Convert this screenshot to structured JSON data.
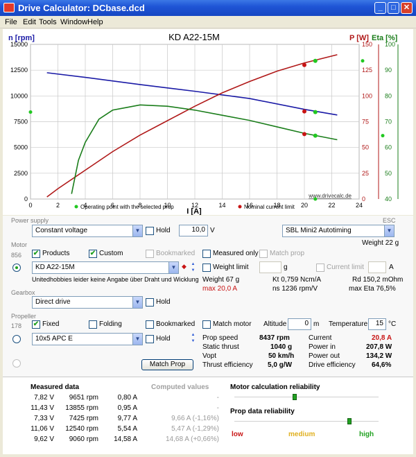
{
  "window": {
    "title": "Drive Calculator: DCbase.dcd"
  },
  "menu": [
    "File",
    "Edit",
    "Tools",
    "Window",
    "Help"
  ],
  "chart": {
    "title": "KD A22-15M",
    "left_axis_label": "n [rpm]",
    "right_axis_label_p": "P [W]",
    "right_axis_label_eta": "Eta [%]",
    "x_axis_label": "I [A]",
    "watermark": "www.drivecalc.de",
    "legend_operating": "Operating point with the selected prop",
    "legend_limit": "Nominal current limit",
    "x_ticks": [
      "0",
      "2",
      "4",
      "6",
      "8",
      "10",
      "12",
      "14",
      "16",
      "18",
      "20",
      "22",
      "24"
    ],
    "n_ticks": [
      "0",
      "2500",
      "5000",
      "7500",
      "10000",
      "12500",
      "15000"
    ],
    "p_ticks": [
      "0",
      "25",
      "50",
      "75",
      "100",
      "125",
      "150"
    ],
    "eta_ticks": [
      "40",
      "50",
      "60",
      "70",
      "80",
      "90",
      "100"
    ],
    "colors": {
      "rpm": "#1a1aa6",
      "power": "#b01818",
      "eta": "#1a7d1a",
      "grid": "#c8c8c8",
      "op_point": "#21c821",
      "limit_point": "#c81414"
    }
  },
  "chart_data": {
    "type": "line",
    "title": "KD A22-15M",
    "xlabel": "I [A]",
    "xlim": [
      0,
      24
    ],
    "series": [
      {
        "name": "n [rpm]",
        "axis": "left",
        "ylim": [
          0,
          15000
        ],
        "x": [
          1.2,
          4,
          8,
          12,
          16,
          20,
          22.4
        ],
        "y": [
          12250,
          11800,
          11100,
          10450,
          9750,
          8700,
          8150
        ]
      },
      {
        "name": "P [W]",
        "axis": "right_p",
        "ylim": [
          0,
          150
        ],
        "x": [
          1.2,
          2,
          4,
          6,
          8,
          10,
          12,
          14,
          16,
          18,
          20,
          22.4
        ],
        "y": [
          2,
          10,
          28,
          46,
          62,
          76,
          90,
          103,
          114,
          124,
          132,
          140
        ]
      },
      {
        "name": "Eta [%]",
        "axis": "right_eta",
        "ylim": [
          40,
          100
        ],
        "x": [
          3,
          3.5,
          4,
          5,
          6,
          7,
          8,
          10,
          12,
          14,
          16,
          18,
          20,
          22.4
        ],
        "y": [
          42,
          55,
          62,
          71,
          74.5,
          75.5,
          76.5,
          76,
          74.5,
          72.5,
          70.5,
          68,
          65.5,
          63
        ]
      },
      {
        "name": "P [W] (nominal current limit)",
        "axis": "right_p",
        "ylim": [
          0,
          150
        ],
        "x": [
          20,
          20,
          20
        ],
        "y": [
          130,
          85,
          63
        ]
      }
    ],
    "operating_points": {
      "x": 20.8,
      "n": 8437,
      "p": 134,
      "eta": 64.6
    }
  },
  "power_supply": {
    "section": "Power supply",
    "mode": "Constant voltage",
    "hold_label": "Hold",
    "voltage": "10,0",
    "voltage_unit": "V",
    "esc_section": "ESC",
    "esc": "SBL Mini2 Autotiming",
    "esc_weight": "Weight 22 g"
  },
  "motor": {
    "section": "Motor",
    "count": "856",
    "products_label": "Products",
    "custom_label": "Custom",
    "bookmarked_label": "Bookmarked",
    "measured_only_label": "Measured only",
    "match_prop_label": "Match prop",
    "name": "KD A22-15M",
    "weight_limit_label": "Weight limit",
    "weight_limit_unit": "g",
    "current_limit_label": "Current limit",
    "current_limit_unit": "A",
    "note": "Unitedhobbies leider keine Angabe über Draht und Wicklung",
    "weight": "Weight 67 g",
    "kt": "Kt 0,759 Ncm/A",
    "rd": "Rd 150,2 mOhm",
    "max_current": "max 20,0 A",
    "ns": "ns 1236 rpm/V",
    "max_eta": "max Eta 76,5%"
  },
  "gearbox": {
    "section": "Gearbox",
    "value": "Direct drive",
    "hold_label": "Hold"
  },
  "propeller": {
    "section": "Propeller",
    "count": "178",
    "fixed_label": "Fixed",
    "folding_label": "Folding",
    "bookmarked_label": "Bookmarked",
    "match_motor_label": "Match motor",
    "altitude_label": "Altitude",
    "altitude": "0",
    "altitude_unit": "m",
    "temperature_label": "Temperature",
    "temperature": "15",
    "temperature_unit": "°C",
    "name": "10x5 APC E",
    "hold_label": "Hold",
    "match_prop_button": "Match Prop"
  },
  "results": {
    "prop_speed_label": "Prop speed",
    "prop_speed": "8437 rpm",
    "static_thrust_label": "Static thrust",
    "static_thrust": "1040 g",
    "vopt_label": "Vopt",
    "vopt": "50 km/h",
    "thrust_eff_label": "Thrust efficiency",
    "thrust_eff": "5,0 g/W",
    "current_label": "Current",
    "current": "20,8 A",
    "power_in_label": "Power in",
    "power_in": "207,8 W",
    "power_out_label": "Power out",
    "power_out": "134,2 W",
    "drive_eff_label": "Drive efficiency",
    "drive_eff": "64,6%"
  },
  "measured": {
    "header": "Measured data",
    "computed_header": "Computed values",
    "rows": [
      {
        "v": "7,82 V",
        "rpm": "9651 rpm",
        "a": "0,80 A",
        "comp": "-"
      },
      {
        "v": "11,43 V",
        "rpm": "13855 rpm",
        "a": "0,95 A",
        "comp": "-"
      },
      {
        "v": "7,33 V",
        "rpm": "7425 rpm",
        "a": "9,77 A",
        "comp": "9,66 A (-1,16%)"
      },
      {
        "v": "11,06 V",
        "rpm": "12540 rpm",
        "a": "5,54 A",
        "comp": "5,47 A (-1,29%)"
      },
      {
        "v": "9,62 V",
        "rpm": "9060 rpm",
        "a": "14,58 A",
        "comp": "14,68 A (+0,66%)"
      }
    ]
  },
  "reliability": {
    "motor_label": "Motor calculation reliability",
    "motor_level": 0.42,
    "prop_label": "Prop data reliability",
    "prop_level": 0.8,
    "low": "low",
    "medium": "medium",
    "high": "high"
  }
}
